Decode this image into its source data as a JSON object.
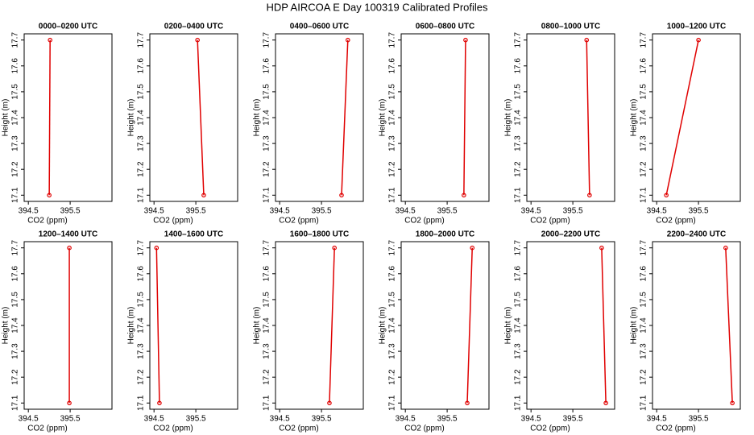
{
  "title": "HDP AIRCOA E  Day 100319  Calibrated Profiles",
  "chart_data": [
    {
      "type": "line",
      "title": "0000–0200 UTC",
      "x_label": "CO2 (ppm)",
      "y_label": "Height (m)",
      "color": "#e00000",
      "x": [
        395.0,
        395.02
      ],
      "values": [
        17.1,
        17.7
      ],
      "xlim": [
        394.4,
        396.5
      ],
      "ylim": [
        17.076,
        17.724
      ],
      "xticks": [
        394.5,
        395.5
      ],
      "yticks": [
        17.1,
        17.2,
        17.3,
        17.4,
        17.5,
        17.6,
        17.7
      ]
    },
    {
      "type": "line",
      "title": "0200–0400 UTC",
      "x_label": "CO2 (ppm)",
      "y_label": "Height (m)",
      "color": "#e00000",
      "x": [
        395.69,
        395.54
      ],
      "values": [
        17.1,
        17.7
      ],
      "xlim": [
        394.4,
        396.5
      ],
      "ylim": [
        17.076,
        17.724
      ],
      "xticks": [
        394.5,
        395.5
      ],
      "yticks": [
        17.1,
        17.2,
        17.3,
        17.4,
        17.5,
        17.6,
        17.7
      ]
    },
    {
      "type": "line",
      "title": "0400–0600 UTC",
      "x_label": "CO2 (ppm)",
      "y_label": "Height (m)",
      "color": "#e00000",
      "x": [
        395.98,
        396.13
      ],
      "values": [
        17.1,
        17.7
      ],
      "xlim": [
        394.4,
        396.5
      ],
      "ylim": [
        17.076,
        17.724
      ],
      "xticks": [
        394.5,
        395.5
      ],
      "yticks": [
        17.1,
        17.2,
        17.3,
        17.4,
        17.5,
        17.6,
        17.7
      ]
    },
    {
      "type": "line",
      "title": "0600–0800 UTC",
      "x_label": "CO2 (ppm)",
      "y_label": "Height (m)",
      "color": "#e00000",
      "x": [
        395.9,
        395.94
      ],
      "values": [
        17.1,
        17.7
      ],
      "xlim": [
        394.4,
        396.5
      ],
      "ylim": [
        17.076,
        17.724
      ],
      "xticks": [
        394.5,
        395.5
      ],
      "yticks": [
        17.1,
        17.2,
        17.3,
        17.4,
        17.5,
        17.6,
        17.7
      ]
    },
    {
      "type": "line",
      "title": "0800–1000 UTC",
      "x_label": "CO2 (ppm)",
      "y_label": "Height (m)",
      "color": "#e00000",
      "x": [
        395.9,
        395.83
      ],
      "values": [
        17.1,
        17.7
      ],
      "xlim": [
        394.4,
        396.5
      ],
      "ylim": [
        17.076,
        17.724
      ],
      "xticks": [
        394.5,
        395.5
      ],
      "yticks": [
        17.1,
        17.2,
        17.3,
        17.4,
        17.5,
        17.6,
        17.7
      ]
    },
    {
      "type": "line",
      "title": "1000–1200 UTC",
      "x_label": "CO2 (ppm)",
      "y_label": "Height (m)",
      "color": "#e00000",
      "x": [
        394.73,
        395.5
      ],
      "values": [
        17.1,
        17.7
      ],
      "xlim": [
        394.4,
        396.5
      ],
      "ylim": [
        17.076,
        17.724
      ],
      "xticks": [
        394.5,
        395.5
      ],
      "yticks": [
        17.1,
        17.2,
        17.3,
        17.4,
        17.5,
        17.6,
        17.7
      ]
    },
    {
      "type": "line",
      "title": "1200–1400 UTC",
      "x_label": "CO2 (ppm)",
      "y_label": "Height (m)",
      "color": "#e00000",
      "x": [
        395.48,
        395.48
      ],
      "values": [
        17.1,
        17.7
      ],
      "xlim": [
        394.4,
        396.5
      ],
      "ylim": [
        17.076,
        17.724
      ],
      "xticks": [
        394.5,
        395.5
      ],
      "yticks": [
        17.1,
        17.2,
        17.3,
        17.4,
        17.5,
        17.6,
        17.7
      ]
    },
    {
      "type": "line",
      "title": "1400–1600 UTC",
      "x_label": "CO2 (ppm)",
      "y_label": "Height (m)",
      "color": "#e00000",
      "x": [
        394.63,
        394.56
      ],
      "values": [
        17.1,
        17.7
      ],
      "xlim": [
        394.4,
        396.5
      ],
      "ylim": [
        17.076,
        17.724
      ],
      "xticks": [
        394.5,
        395.5
      ],
      "yticks": [
        17.1,
        17.2,
        17.3,
        17.4,
        17.5,
        17.6,
        17.7
      ]
    },
    {
      "type": "line",
      "title": "1600–1800 UTC",
      "x_label": "CO2 (ppm)",
      "y_label": "Height (m)",
      "color": "#e00000",
      "x": [
        395.69,
        395.81
      ],
      "values": [
        17.1,
        17.7
      ],
      "xlim": [
        394.4,
        396.5
      ],
      "ylim": [
        17.076,
        17.724
      ],
      "xticks": [
        394.5,
        395.5
      ],
      "yticks": [
        17.1,
        17.2,
        17.3,
        17.4,
        17.5,
        17.6,
        17.7
      ]
    },
    {
      "type": "line",
      "title": "1800–2000 UTC",
      "x_label": "CO2 (ppm)",
      "y_label": "Height (m)",
      "color": "#e00000",
      "x": [
        395.98,
        396.1
      ],
      "values": [
        17.1,
        17.7
      ],
      "xlim": [
        394.4,
        396.5
      ],
      "ylim": [
        17.076,
        17.724
      ],
      "xticks": [
        394.5,
        395.5
      ],
      "yticks": [
        17.1,
        17.2,
        17.3,
        17.4,
        17.5,
        17.6,
        17.7
      ]
    },
    {
      "type": "line",
      "title": "2000–2200 UTC",
      "x_label": "CO2 (ppm)",
      "y_label": "Height (m)",
      "color": "#e00000",
      "x": [
        396.29,
        396.19
      ],
      "values": [
        17.1,
        17.7
      ],
      "xlim": [
        394.4,
        396.5
      ],
      "ylim": [
        17.076,
        17.724
      ],
      "xticks": [
        394.5,
        395.5
      ],
      "yticks": [
        17.1,
        17.2,
        17.3,
        17.4,
        17.5,
        17.6,
        17.7
      ]
    },
    {
      "type": "line",
      "title": "2200–2400 UTC",
      "x_label": "CO2 (ppm)",
      "y_label": "Height (m)",
      "color": "#e00000",
      "x": [
        396.31,
        396.15
      ],
      "values": [
        17.1,
        17.7
      ],
      "xlim": [
        394.4,
        396.5
      ],
      "ylim": [
        17.076,
        17.724
      ],
      "xticks": [
        394.5,
        395.5
      ],
      "yticks": [
        17.1,
        17.2,
        17.3,
        17.4,
        17.5,
        17.6,
        17.7
      ]
    }
  ]
}
